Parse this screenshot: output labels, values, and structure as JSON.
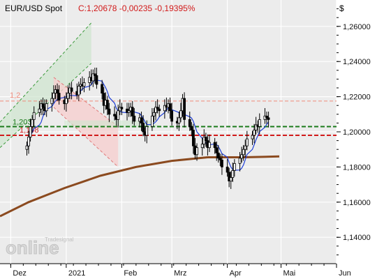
{
  "header": {
    "symbol": "EUR/USD Spot",
    "quote": "C:1,20678 -0,00235 -0,19395%",
    "currency": "$"
  },
  "watermark": {
    "text": "online",
    "small": "Tradesignal"
  },
  "colors": {
    "bg": "#ececec",
    "axis_bg": "#ffffff",
    "grid": "#ffffff",
    "candle": "#000000",
    "ma200": "#8b4a1f",
    "ma_short": "#1f3fd6",
    "support_green": "#1a7a1a",
    "support_red": "#d11a1a",
    "resistance_salmon": "#f08a7a",
    "channel_fill": "#cfe6cf",
    "channel_line": "#3c9a3c",
    "down_fill": "#f6cfcf",
    "down_line": "#e07a7a"
  },
  "levels": [
    {
      "label": "1,203",
      "value": 1.203,
      "color": "#1a7a1a"
    },
    {
      "label": "1,198",
      "value": 1.198,
      "color": "#d11a1a"
    },
    {
      "label": "1,2",
      "value": 1.2175,
      "color": "#f08a7a"
    }
  ],
  "chart_data": {
    "type": "candlestick",
    "ylim": [
      1.125,
      1.275
    ],
    "x_range_days": [
      -6,
      182
    ],
    "y_ticks": [
      "1,26000",
      "1,24000",
      "1,22000",
      "1,20000",
      "1,18000",
      "1,16000",
      "1,14000"
    ],
    "y_tick_values": [
      1.26,
      1.24,
      1.22,
      1.2,
      1.18,
      1.16,
      1.14
    ],
    "x_tick_labels": [
      "Dez",
      "2021",
      "Feb",
      "Mrz",
      "Apr",
      "Mai",
      "Jun"
    ],
    "x_tick_days": [
      0,
      31,
      62,
      90,
      121,
      151,
      182
    ],
    "candles_close": [
      1.192,
      1.197,
      1.203,
      1.207,
      1.211,
      1.213,
      1.216,
      1.214,
      1.212,
      1.216,
      1.219,
      1.222,
      1.224,
      1.222,
      1.218,
      1.216,
      1.219,
      1.222,
      1.225,
      1.223,
      1.221,
      1.226,
      1.227,
      1.226,
      1.228,
      1.231,
      1.229,
      1.233,
      1.232,
      1.227,
      1.222,
      1.215,
      1.218,
      1.213,
      1.21,
      1.209,
      1.207,
      1.212,
      1.214,
      1.213,
      1.211,
      1.212,
      1.214,
      1.209,
      1.206,
      1.208,
      1.205,
      1.2,
      1.198,
      1.203,
      1.209,
      1.211,
      1.214,
      1.213,
      1.212,
      1.215,
      1.214,
      1.216,
      1.212,
      1.206,
      1.205,
      1.208,
      1.212,
      1.219,
      1.207,
      1.203,
      1.201,
      1.192,
      1.187,
      1.191,
      1.193,
      1.197,
      1.195,
      1.191,
      1.194,
      1.191,
      1.188,
      1.185,
      1.184,
      1.18,
      1.177,
      1.172,
      1.174,
      1.178,
      1.182,
      1.185,
      1.187,
      1.19,
      1.192,
      1.196,
      1.198,
      1.201,
      1.204,
      1.203,
      1.207,
      1.209,
      1.208,
      1.207
    ]
  }
}
